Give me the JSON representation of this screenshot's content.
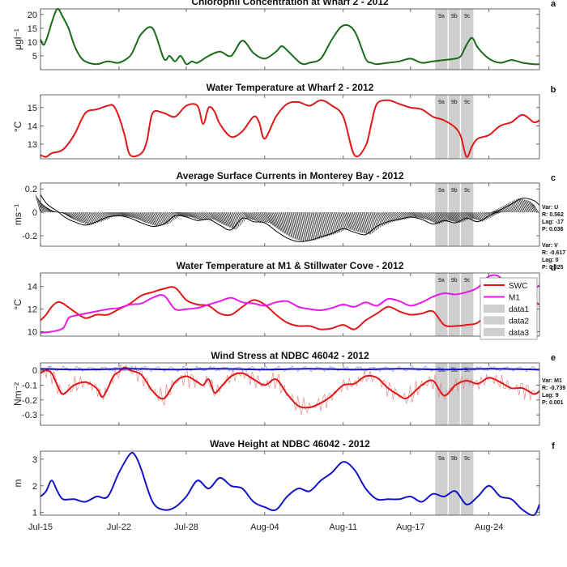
{
  "x_axis": {
    "tick_labels": [
      "Jul-15",
      "Jul-22",
      "Jul-28",
      "Aug-04",
      "Aug-11",
      "Aug-17",
      "Aug-24"
    ],
    "tick_days": [
      0,
      7,
      13,
      20,
      27,
      33,
      40
    ],
    "range_days": [
      0,
      44.5
    ]
  },
  "bands": [
    {
      "label": "9a",
      "start_day": 35.2,
      "end_day": 36.3
    },
    {
      "label": "9b",
      "start_day": 36.4,
      "end_day": 37.4
    },
    {
      "label": "9c",
      "start_day": 37.5,
      "end_day": 38.6
    }
  ],
  "colors": {
    "green": "#1a6b1a",
    "red": "#e01818",
    "magenta": "#e81ae8",
    "blue": "#1515c8",
    "band": "#cfcfcf",
    "thin_red": "#e88a8a",
    "thin_blue": "#8888e8"
  },
  "chart_data": [
    {
      "id": "a",
      "type": "line",
      "title": "Chlorophll Concentration at Wharf 2 - 2012",
      "panel_letter": "a",
      "ylabel": "μgl⁻¹",
      "ylim": [
        0,
        22
      ],
      "yticks": [
        5,
        10,
        15,
        20
      ],
      "series": [
        {
          "color": "green",
          "x": [
            0,
            0.3,
            0.7,
            1,
            1.5,
            2,
            2.5,
            3,
            3.5,
            4,
            5,
            6,
            7,
            8,
            8.5,
            9,
            10,
            11,
            11.5,
            12,
            12.5,
            13,
            13.5,
            14,
            15,
            16,
            17,
            18,
            19,
            20,
            21,
            21.5,
            22,
            23,
            23.5,
            24,
            25,
            26,
            27,
            28,
            29,
            29.5,
            30,
            31,
            32,
            33,
            34,
            35,
            36,
            37,
            37.5,
            38,
            38.5,
            39,
            40,
            41,
            42,
            43,
            44,
            44.5
          ],
          "y": [
            11,
            9,
            13,
            17,
            22,
            19,
            15,
            9,
            5,
            3,
            2,
            3,
            2.5,
            5,
            9,
            13,
            15,
            4,
            5,
            3,
            5,
            2,
            3,
            2.5,
            5,
            6.5,
            5,
            10.5,
            6,
            4,
            6.5,
            8.5,
            7,
            3,
            2,
            2.5,
            4,
            11,
            16,
            14,
            4,
            2.5,
            2,
            2.5,
            3,
            4,
            2.5,
            3,
            3.5,
            4,
            5,
            9,
            11.5,
            8,
            4,
            2.5,
            3.5,
            2.5,
            2,
            2
          ]
        }
      ]
    },
    {
      "id": "b",
      "type": "line",
      "title": "Water Temperature at Wharf 2 - 2012",
      "panel_letter": "b",
      "ylabel": "°C",
      "ylim": [
        12.2,
        15.7
      ],
      "yticks": [
        13,
        14,
        15
      ],
      "series": [
        {
          "color": "red",
          "x": [
            0,
            0.5,
            1,
            2,
            3,
            4,
            5,
            6,
            6.5,
            7,
            7.5,
            8,
            9,
            9.5,
            10,
            11,
            12,
            13,
            14,
            14.5,
            15,
            15.5,
            16,
            17,
            18,
            19,
            19.5,
            20,
            21,
            22,
            23,
            24,
            25,
            26,
            27,
            28,
            29,
            29.5,
            30,
            31,
            32,
            33,
            34,
            35,
            36,
            37,
            37.5,
            38,
            38.5,
            39,
            40,
            41,
            42,
            43,
            44,
            44.5
          ],
          "y": [
            12.4,
            12.3,
            12.5,
            12.7,
            13.5,
            14.7,
            14.9,
            15.1,
            15.1,
            14.5,
            13.5,
            12.4,
            12.5,
            13.2,
            14.7,
            14.7,
            14.5,
            15.1,
            15.1,
            14.1,
            15,
            14.8,
            14.1,
            13.4,
            13.7,
            14.5,
            14.2,
            13.3,
            14.5,
            15.2,
            15.3,
            15.1,
            15.4,
            15.1,
            14.5,
            12.4,
            12.9,
            14.1,
            15.2,
            15.4,
            15.2,
            15,
            14.9,
            14.5,
            14.3,
            13.9,
            13.4,
            12.3,
            12.9,
            13.3,
            13.5,
            14,
            14.2,
            14.6,
            14.2,
            14.3
          ]
        }
      ]
    },
    {
      "id": "c",
      "type": "quiver",
      "title": "Average Surface Currents in Monterey Bay - 2012",
      "panel_letter": "c",
      "ylabel": "ms⁻¹",
      "ylim": [
        -0.29,
        0.25
      ],
      "yticks": [
        -0.2,
        0,
        0.2
      ],
      "tick_labels_text": [
        "-0.2",
        "0",
        "0.2"
      ],
      "series": [
        {
          "name": "U",
          "color": "black",
          "x": [
            0,
            0.5,
            1,
            1.5,
            2,
            2.5,
            3,
            4,
            5,
            6,
            7,
            8,
            9,
            10,
            11,
            12,
            13,
            14,
            15,
            16,
            17,
            18,
            19,
            20,
            21,
            22,
            23,
            24,
            25,
            26,
            27,
            28,
            29,
            30,
            31,
            32,
            33,
            34,
            35,
            36,
            37,
            38,
            39,
            40,
            41,
            42,
            43,
            44,
            44.5
          ],
          "y": [
            0.15,
            0.08,
            0.04,
            0.01,
            -0.03,
            -0.06,
            -0.08,
            -0.11,
            -0.08,
            -0.04,
            -0.03,
            -0.05,
            -0.09,
            -0.12,
            -0.1,
            -0.03,
            -0.04,
            -0.07,
            -0.06,
            -0.11,
            -0.15,
            -0.05,
            -0.08,
            -0.09,
            -0.16,
            -0.22,
            -0.25,
            -0.24,
            -0.21,
            -0.18,
            -0.14,
            -0.17,
            -0.19,
            -0.12,
            -0.08,
            -0.06,
            -0.04,
            -0.06,
            -0.1,
            -0.07,
            -0.09,
            -0.05,
            -0.08,
            -0.03,
            0.02,
            0.07,
            0.12,
            0.1,
            0.06
          ]
        }
      ],
      "stats": [
        {
          "var": "Var: U",
          "r": "R: 0.562",
          "lag": "Lag: -17",
          "p": "P: 0.036"
        },
        {
          "var": "Var: V",
          "r": "R: -0.617",
          "lag": "Lag: 0",
          "p": "P: 0.025"
        }
      ]
    },
    {
      "id": "d",
      "type": "line",
      "title": "Water Temperature at M1 & Stillwater Cove - 2012",
      "panel_letter": "d",
      "ylabel": "°C",
      "ylim": [
        9.6,
        15.2
      ],
      "yticks": [
        10,
        12,
        14
      ],
      "legend": {
        "position": "top-right",
        "entries": [
          "SWC",
          "M1",
          "data1",
          "data2",
          "data3"
        ]
      },
      "series": [
        {
          "name": "SWC",
          "color": "red",
          "x": [
            0,
            0.5,
            1,
            1.5,
            2,
            3,
            4,
            5,
            6,
            7,
            8,
            9,
            10,
            11,
            12,
            13,
            14,
            15,
            16,
            17,
            18,
            19,
            20,
            21,
            22,
            23,
            24,
            25,
            26,
            27,
            28,
            29,
            30,
            31,
            32,
            33,
            34,
            35,
            36,
            37,
            38,
            39,
            40,
            41,
            42,
            43,
            44,
            44.5
          ],
          "y": [
            11,
            11.5,
            12.2,
            12.6,
            12.5,
            11.8,
            11.2,
            11.5,
            11.5,
            12,
            12.5,
            13.2,
            13.5,
            13.8,
            13.9,
            12.8,
            12.4,
            12.3,
            11.6,
            11.5,
            12.2,
            12.8,
            12.4,
            11.5,
            10.8,
            10.5,
            10.5,
            10.2,
            10.3,
            10.6,
            10.2,
            11,
            11.6,
            12.2,
            11.8,
            11.5,
            11.6,
            11.8,
            10.6,
            10.5,
            10.6,
            10.8,
            11.8,
            12.5,
            12.3,
            12.4,
            12.6,
            12.4
          ]
        },
        {
          "name": "M1",
          "color": "magenta",
          "x": [
            0,
            1,
            2,
            2.5,
            3,
            4,
            5,
            6,
            7,
            8,
            9,
            10,
            11,
            12,
            13,
            14,
            15,
            16,
            17,
            18,
            19,
            20,
            21,
            22,
            23,
            24,
            25,
            26,
            27,
            28,
            29,
            30,
            31,
            32,
            33,
            34,
            35,
            36,
            37,
            38,
            39,
            40,
            41,
            42,
            43,
            44,
            44.5
          ],
          "y": [
            9.9,
            10,
            10.3,
            11.2,
            11.4,
            11.6,
            11.8,
            12,
            12.1,
            12.4,
            12.5,
            13,
            13.2,
            12,
            12,
            12.1,
            12.4,
            12.7,
            13,
            12.6,
            12.5,
            12.3,
            12.6,
            12.7,
            12.2,
            12,
            11.9,
            12.1,
            12.4,
            12.2,
            12.6,
            12.3,
            12.9,
            12.7,
            12.3,
            12.6,
            13.1,
            13.4,
            13.3,
            13.5,
            13.9,
            14.9,
            14.8,
            13.2,
            13.4,
            13.8,
            14.1
          ]
        }
      ]
    },
    {
      "id": "e",
      "type": "line",
      "title": "Wind Stress at NDBC 46042 - 2012",
      "panel_letter": "e",
      "ylabel": "Nm⁻²",
      "ylim": [
        -0.37,
        0.05
      ],
      "yticks": [
        -0.3,
        -0.2,
        -0.1,
        0
      ],
      "tick_labels_text": [
        "-0.3",
        "-0.2",
        "-0.1",
        "0"
      ],
      "series": [
        {
          "name": "thick_red",
          "color": "red",
          "x": [
            0,
            0.5,
            1,
            1.5,
            2,
            3,
            4,
            5,
            5.5,
            6,
            6.5,
            7,
            7.5,
            8,
            9,
            10,
            11,
            12,
            13,
            14,
            14.5,
            15,
            15.5,
            16,
            17,
            18,
            19,
            20,
            21,
            22,
            23,
            24,
            25,
            26,
            27,
            28,
            29,
            30,
            31,
            32,
            32.5,
            33,
            34,
            35,
            36,
            37,
            38,
            39,
            40,
            41,
            42,
            43,
            44,
            44.5
          ],
          "y": [
            -0.02,
            0,
            -0.02,
            -0.1,
            -0.16,
            -0.1,
            -0.08,
            -0.12,
            -0.18,
            -0.12,
            -0.04,
            -0.01,
            0.02,
            0,
            -0.03,
            -0.14,
            -0.19,
            -0.08,
            -0.04,
            -0.08,
            -0.1,
            -0.06,
            -0.15,
            -0.12,
            -0.04,
            -0.02,
            -0.06,
            -0.1,
            -0.06,
            -0.16,
            -0.24,
            -0.25,
            -0.22,
            -0.17,
            -0.1,
            -0.09,
            -0.04,
            -0.05,
            -0.12,
            -0.17,
            -0.19,
            -0.17,
            -0.1,
            -0.07,
            -0.17,
            -0.1,
            -0.07,
            -0.09,
            -0.05,
            -0.08,
            -0.12,
            -0.12,
            -0.16,
            -0.14
          ]
        },
        {
          "name": "thick_blue",
          "color": "blue",
          "x": [
            0,
            4,
            8,
            12,
            16,
            20,
            24,
            28,
            32,
            36,
            40,
            44.5
          ],
          "y": [
            0.01,
            0.005,
            0.01,
            0.005,
            0.01,
            0.005,
            0.01,
            0.005,
            0.01,
            0.005,
            0.01,
            0.005
          ]
        }
      ],
      "stats": [
        {
          "var": "Var: M1",
          "r": "R: -0.739",
          "lag": "Lag: 9",
          "p": "P: 0.001"
        }
      ]
    },
    {
      "id": "f",
      "type": "line",
      "title": "Wave Height at NDBC 46042 - 2012",
      "panel_letter": "f",
      "ylabel": "m",
      "ylim": [
        0.9,
        3.3
      ],
      "yticks": [
        1,
        2,
        3
      ],
      "series": [
        {
          "color": "blue",
          "x": [
            0,
            0.5,
            1,
            1.5,
            2,
            3,
            4,
            5,
            6,
            7,
            8,
            8.5,
            9,
            10,
            11,
            12,
            13,
            14,
            15,
            16,
            17,
            18,
            19,
            20,
            21,
            22,
            23,
            24,
            25,
            26,
            27,
            28,
            29,
            30,
            31,
            32,
            33,
            34,
            35,
            36,
            37,
            38,
            39,
            40,
            41,
            42,
            43,
            44,
            44.5
          ],
          "y": [
            1.6,
            1.8,
            2.2,
            1.8,
            1.5,
            1.5,
            1.4,
            1.6,
            1.6,
            2.5,
            3.2,
            3.1,
            2.6,
            1.4,
            1.1,
            1.2,
            1.6,
            2.2,
            1.9,
            2.3,
            2.0,
            1.9,
            1.4,
            1.2,
            1.1,
            1.6,
            1.9,
            1.8,
            2.2,
            2.5,
            2.9,
            2.6,
            1.9,
            1.5,
            1.5,
            1.5,
            1.6,
            1.4,
            1.7,
            1.6,
            1.8,
            1.3,
            1.6,
            2.0,
            1.6,
            1.5,
            1.1,
            0.9,
            1.3
          ]
        }
      ]
    }
  ]
}
